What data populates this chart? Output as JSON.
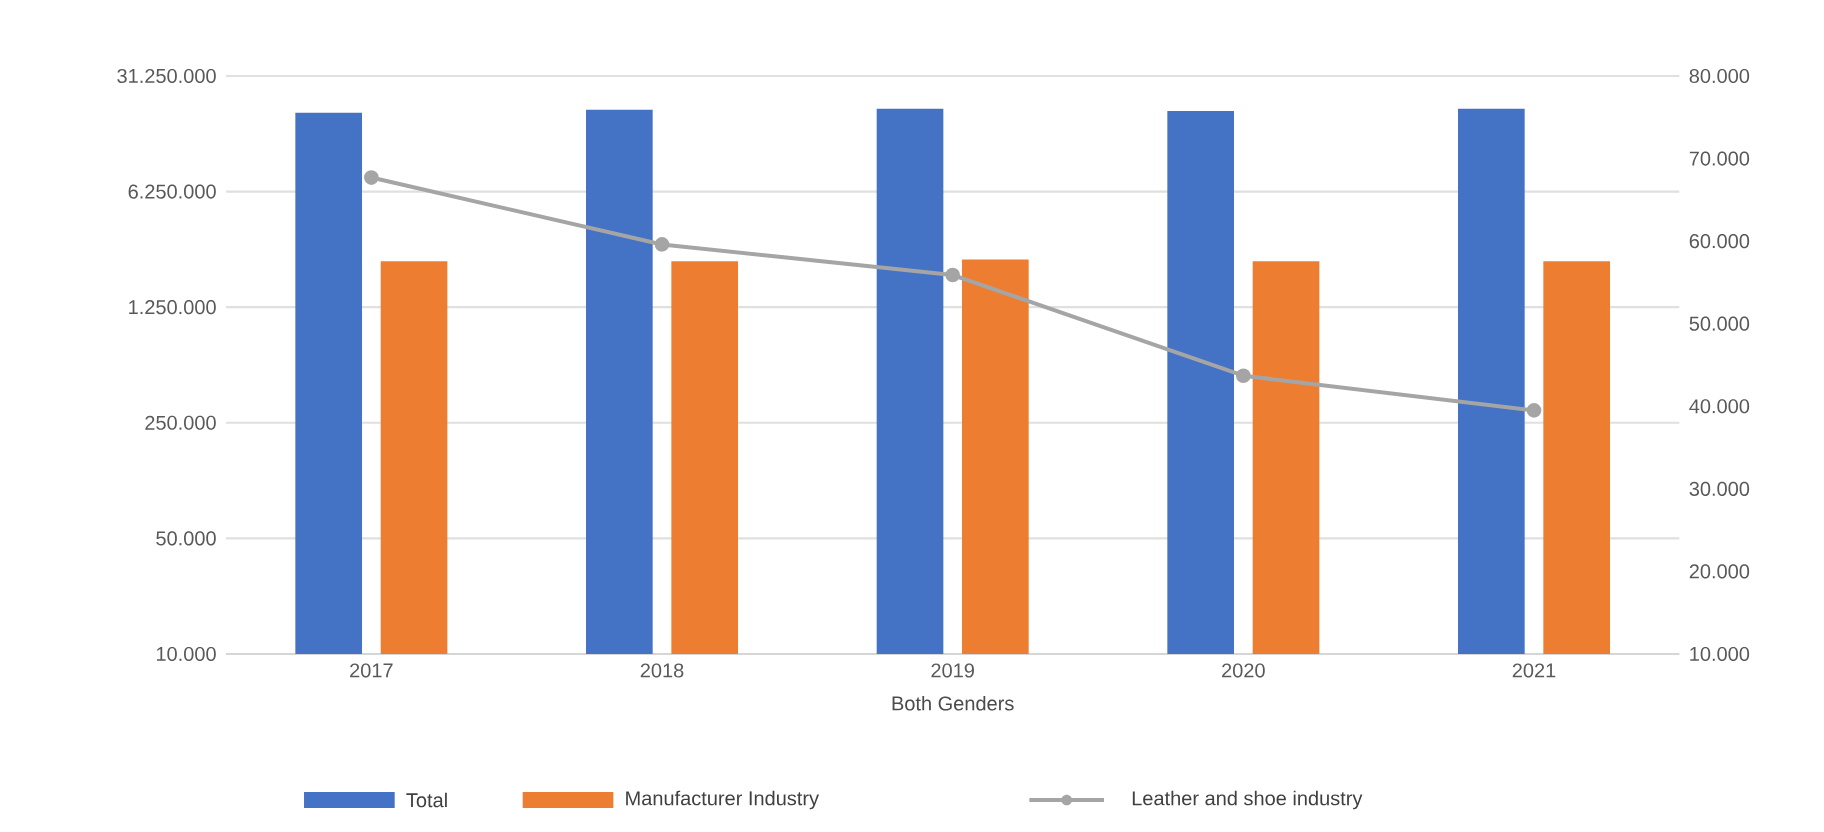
{
  "chart_data": {
    "type": "bar",
    "xlabel": "Both Genders",
    "categories": [
      "2017",
      "2018",
      "2019",
      "2020",
      "2021"
    ],
    "series": [
      {
        "name": "Total",
        "color": "#4472c4",
        "values": [
          18700000,
          19500000,
          19800000,
          19200000,
          19800000
        ]
      },
      {
        "name": "Manufacturer Industry",
        "color": "#ed7d31",
        "values": [
          2370000,
          2370000,
          2430000,
          2370000,
          2370000
        ]
      },
      {
        "name": "Leather and shoe industry",
        "type": "line",
        "axis": "y2",
        "color": "#a5a5a5",
        "marker": "circle",
        "values": [
          67700,
          59600,
          55900,
          43700,
          39500
        ]
      }
    ],
    "log": "y",
    "ylim": [
      10000,
      31250000
    ],
    "yticks": [
      {
        "value": 10000,
        "label": "10.000"
      },
      {
        "value": 50000,
        "label": "50.000"
      },
      {
        "value": 250000,
        "label": "250.000"
      },
      {
        "value": 1250000,
        "label": "1.250.000"
      },
      {
        "value": 6250000,
        "label": "6.250.000"
      },
      {
        "value": 31250000,
        "label": "31.250.000"
      }
    ],
    "y2lim": [
      10000,
      80000
    ],
    "y2ticks": [
      {
        "value": 10000,
        "label": "10.000"
      },
      {
        "value": 20000,
        "label": "20.000"
      },
      {
        "value": 30000,
        "label": "30.000"
      },
      {
        "value": 40000,
        "label": "40.000"
      },
      {
        "value": 50000,
        "label": "50.000"
      },
      {
        "value": 60000,
        "label": "60.000"
      },
      {
        "value": 70000,
        "label": "70.000"
      },
      {
        "value": 80000,
        "label": "80.000"
      }
    ],
    "grid": "y",
    "legend": "bottom"
  }
}
